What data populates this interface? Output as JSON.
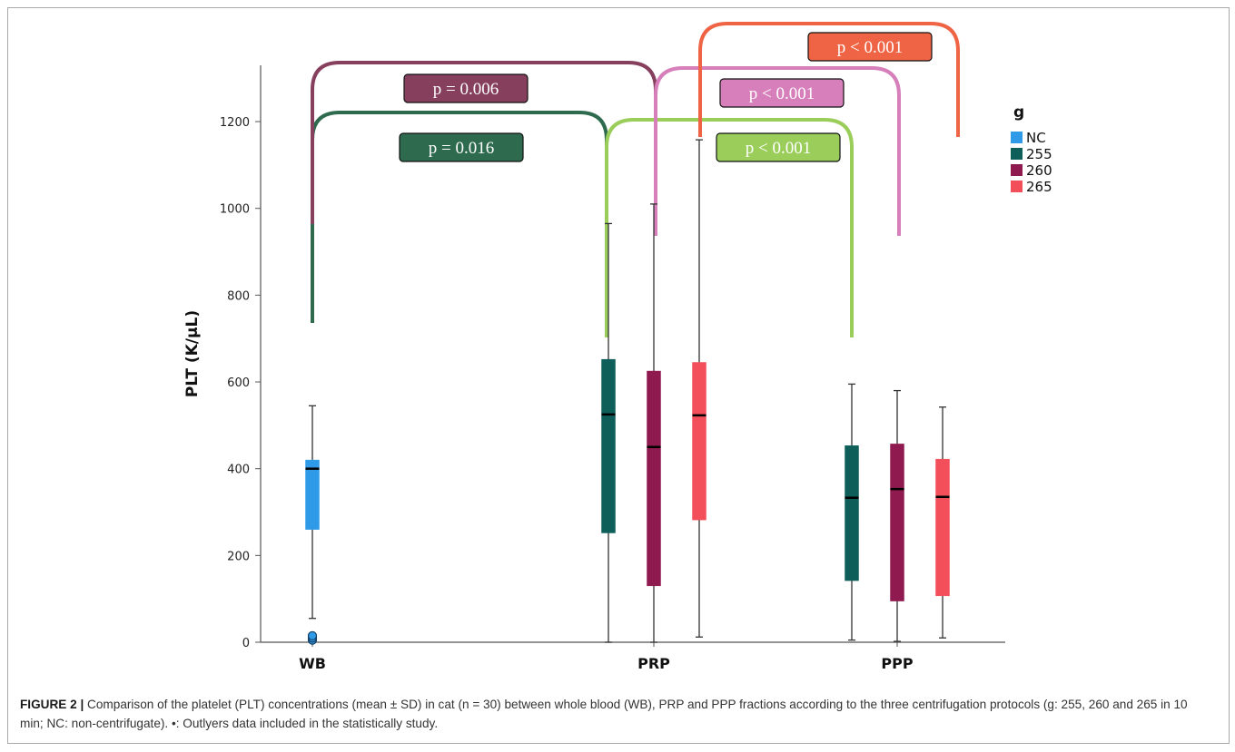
{
  "chart_data": {
    "type": "boxplot",
    "ylabel": "PLT (K/µL)",
    "ylim": [
      0,
      1300
    ],
    "yticks": [
      0,
      200,
      400,
      600,
      800,
      1000,
      1200
    ],
    "categories": [
      "WB",
      "PRP",
      "PPP"
    ],
    "legend": {
      "title": "g",
      "placement": "top-right",
      "entries": [
        {
          "name": "NC",
          "color": "#2f9be8"
        },
        {
          "name": "255",
          "color": "#0e5e5a"
        },
        {
          "name": "260",
          "color": "#8f1a4f"
        },
        {
          "name": "265",
          "color": "#f24f5a"
        }
      ]
    },
    "series": [
      {
        "name": "NC",
        "category": "WB",
        "color": "#2f9be8",
        "min": 55,
        "q1": 260,
        "median": 400,
        "q3": 420,
        "max": 545,
        "outliers": [
          5,
          10,
          15
        ]
      },
      {
        "name": "255",
        "category": "PRP",
        "color": "#0e5e5a",
        "min": 0,
        "q1": 252,
        "median": 525,
        "q3": 652,
        "max": 965,
        "outliers": []
      },
      {
        "name": "260",
        "category": "PRP",
        "color": "#8f1a4f",
        "min": 0,
        "q1": 130,
        "median": 450,
        "q3": 625,
        "max": 1010,
        "outliers": []
      },
      {
        "name": "265",
        "category": "PRP",
        "color": "#f24f5a",
        "min": 12,
        "q1": 282,
        "median": 523,
        "q3": 645,
        "max": 1158,
        "outliers": []
      },
      {
        "name": "255",
        "category": "PPP",
        "color": "#0e5e5a",
        "min": 5,
        "q1": 142,
        "median": 333,
        "q3": 453,
        "max": 595,
        "outliers": []
      },
      {
        "name": "260",
        "category": "PPP",
        "color": "#8f1a4f",
        "min": 2,
        "q1": 95,
        "median": 353,
        "q3": 457,
        "max": 580,
        "outliers": []
      },
      {
        "name": "265",
        "category": "PPP",
        "color": "#f24f5a",
        "min": 10,
        "q1": 107,
        "median": 335,
        "q3": 422,
        "max": 542,
        "outliers": []
      }
    ],
    "annotations": [
      {
        "text": "p = 0.016",
        "from": "WB",
        "to": "PRP",
        "color": "#2e6b4e",
        "level": 1220
      },
      {
        "text": "p = 0.006",
        "from": "WB",
        "to": "PRP",
        "color": "#86405e",
        "level": 1335
      },
      {
        "text": "p < 0.001",
        "from": "PRP",
        "to": "PPP",
        "color": "#9acd5a",
        "level": 1205
      },
      {
        "text": "p < 0.001",
        "from": "PRP",
        "to": "PPP",
        "color": "#d67fba",
        "level": 1320
      },
      {
        "text": "p < 0.001",
        "from": "PRP",
        "to": "PPP",
        "color": "#ee6444",
        "level": 1435
      }
    ]
  },
  "caption": {
    "label": "FIGURE 2 |",
    "text": " Comparison of the platelet (PLT) concentrations (mean ± SD) in cat (n = 30) between whole blood (WB), PRP and PPP fractions according to the three centrifugation protocols (g: 255, 260 and 265 in 10 min; NC: non-centrifugate). •: Outlyers data included in the statistically study."
  }
}
